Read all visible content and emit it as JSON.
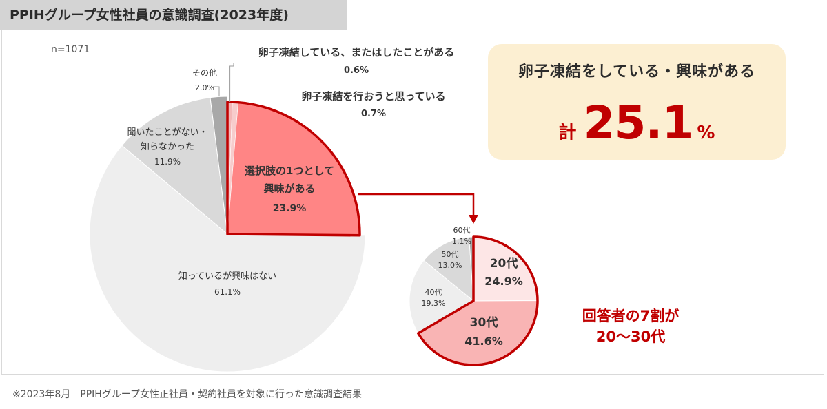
{
  "title": "PPIHグループ女性社員の意識調査(2023年度)",
  "sample": "n=1071",
  "chart_data": [
    {
      "type": "pie",
      "slices": [
        {
          "label": "卵子凍結している、またはしたことがある",
          "value": 0.6,
          "value_label": "0.6%",
          "color": "#f3b8b8",
          "highlight": true
        },
        {
          "label": "卵子凍結を行おうと思っている",
          "value": 0.7,
          "value_label": "0.7%",
          "color": "#f7cccc",
          "highlight": true
        },
        {
          "label": "選択肢の1つとして興味がある",
          "label_lines": [
            "選択肢の1つとして",
            "興味がある"
          ],
          "value": 23.9,
          "value_label": "23.9%",
          "color": "#ff8585",
          "highlight": true
        },
        {
          "label": "知っているが興味はない",
          "value": 61.1,
          "value_label": "61.1%",
          "color": "#eeeeee",
          "highlight": false
        },
        {
          "label": "聞いたことがない・知らなかった",
          "label_lines": [
            "聞いたことがない・",
            "知らなかった"
          ],
          "value": 11.9,
          "value_label": "11.9%",
          "color": "#d9d9d9",
          "highlight": false
        },
        {
          "label": "その他",
          "value": 2.0,
          "value_label": "2.0%",
          "color": "#a8a8a8",
          "highlight": false
        }
      ]
    },
    {
      "type": "pie",
      "slices": [
        {
          "label": "20代",
          "value": 24.9,
          "value_label": "24.9%",
          "color": "#fde6e6",
          "highlight": true
        },
        {
          "label": "30代",
          "value": 41.6,
          "value_label": "41.6%",
          "color": "#f9b4b4",
          "highlight": true
        },
        {
          "label": "40代",
          "value": 19.3,
          "value_label": "19.3%",
          "color": "#eeeeee",
          "highlight": false
        },
        {
          "label": "50代",
          "value": 13.0,
          "value_label": "13.0%",
          "color": "#d9d9d9",
          "highlight": false
        },
        {
          "label": "60代",
          "value": 1.1,
          "value_label": "1.1%",
          "color": "#a8a8a8",
          "highlight": false
        }
      ]
    }
  ],
  "callout": {
    "label": "卵子凍結をしている・興味がある",
    "prefix": "計",
    "value": "25.1",
    "unit": "%"
  },
  "note_lines": [
    "回答者の7割が",
    "20〜30代"
  ],
  "footnote": "※2023年8月　PPIHグループ女性正社員・契約社員を対象に行った意識調査結果",
  "colors": {
    "highlight_border": "#c00000",
    "accent_text": "#c00000",
    "callout_bg": "#fcefd2",
    "title_bg": "#d4d4d4"
  }
}
